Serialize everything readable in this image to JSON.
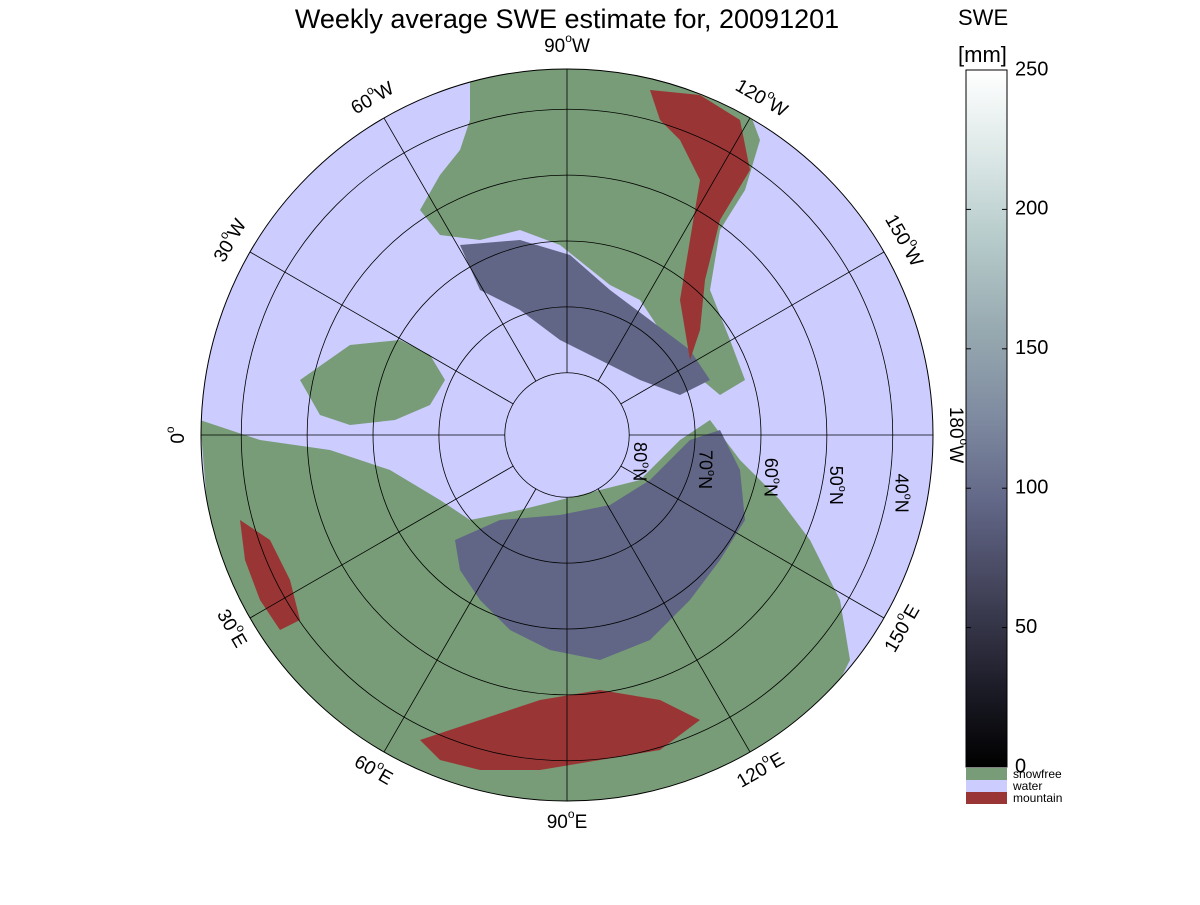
{
  "title": "Weekly average SWE estimate for, 20091201",
  "colorbar": {
    "label_line1": "SWE",
    "label_line2": "[mm]",
    "ticks": [
      0,
      50,
      100,
      150,
      200,
      250
    ],
    "range": [
      0,
      250
    ],
    "colors": [
      "#000000",
      "#1f1f2c",
      "#424259",
      "#616686",
      "#7e8aa0",
      "#97a9b0",
      "#b4c9c9",
      "#dbe7e6",
      "#ffffff"
    ]
  },
  "legend": [
    {
      "label": "snowfree",
      "color": "#779c77"
    },
    {
      "label": "water",
      "color": "#ccccff"
    },
    {
      "label": "mountain",
      "color": "#9a3535"
    }
  ],
  "map": {
    "projection": "north polar stereographic",
    "ocean_color": "#ccccff",
    "snowfree_color": "#779c77",
    "mountain_color": "#9a3535",
    "meridian_labels": [
      {
        "deg": "90",
        "dir": "W"
      },
      {
        "deg": "120",
        "dir": "W"
      },
      {
        "deg": "150",
        "dir": "W"
      },
      {
        "deg": "180",
        "dir": "W"
      },
      {
        "deg": "150",
        "dir": "E"
      },
      {
        "deg": "120",
        "dir": "E"
      },
      {
        "deg": "90",
        "dir": "E"
      },
      {
        "deg": "60",
        "dir": "E"
      },
      {
        "deg": "30",
        "dir": "E"
      },
      {
        "deg": "0",
        "dir": ""
      },
      {
        "deg": "30",
        "dir": "W"
      },
      {
        "deg": "60",
        "dir": "W"
      }
    ],
    "parallel_labels": [
      {
        "deg": "80",
        "dir": "N"
      },
      {
        "deg": "70",
        "dir": "N"
      },
      {
        "deg": "60",
        "dir": "N"
      },
      {
        "deg": "50",
        "dir": "N"
      },
      {
        "deg": "40",
        "dir": "N"
      }
    ]
  }
}
